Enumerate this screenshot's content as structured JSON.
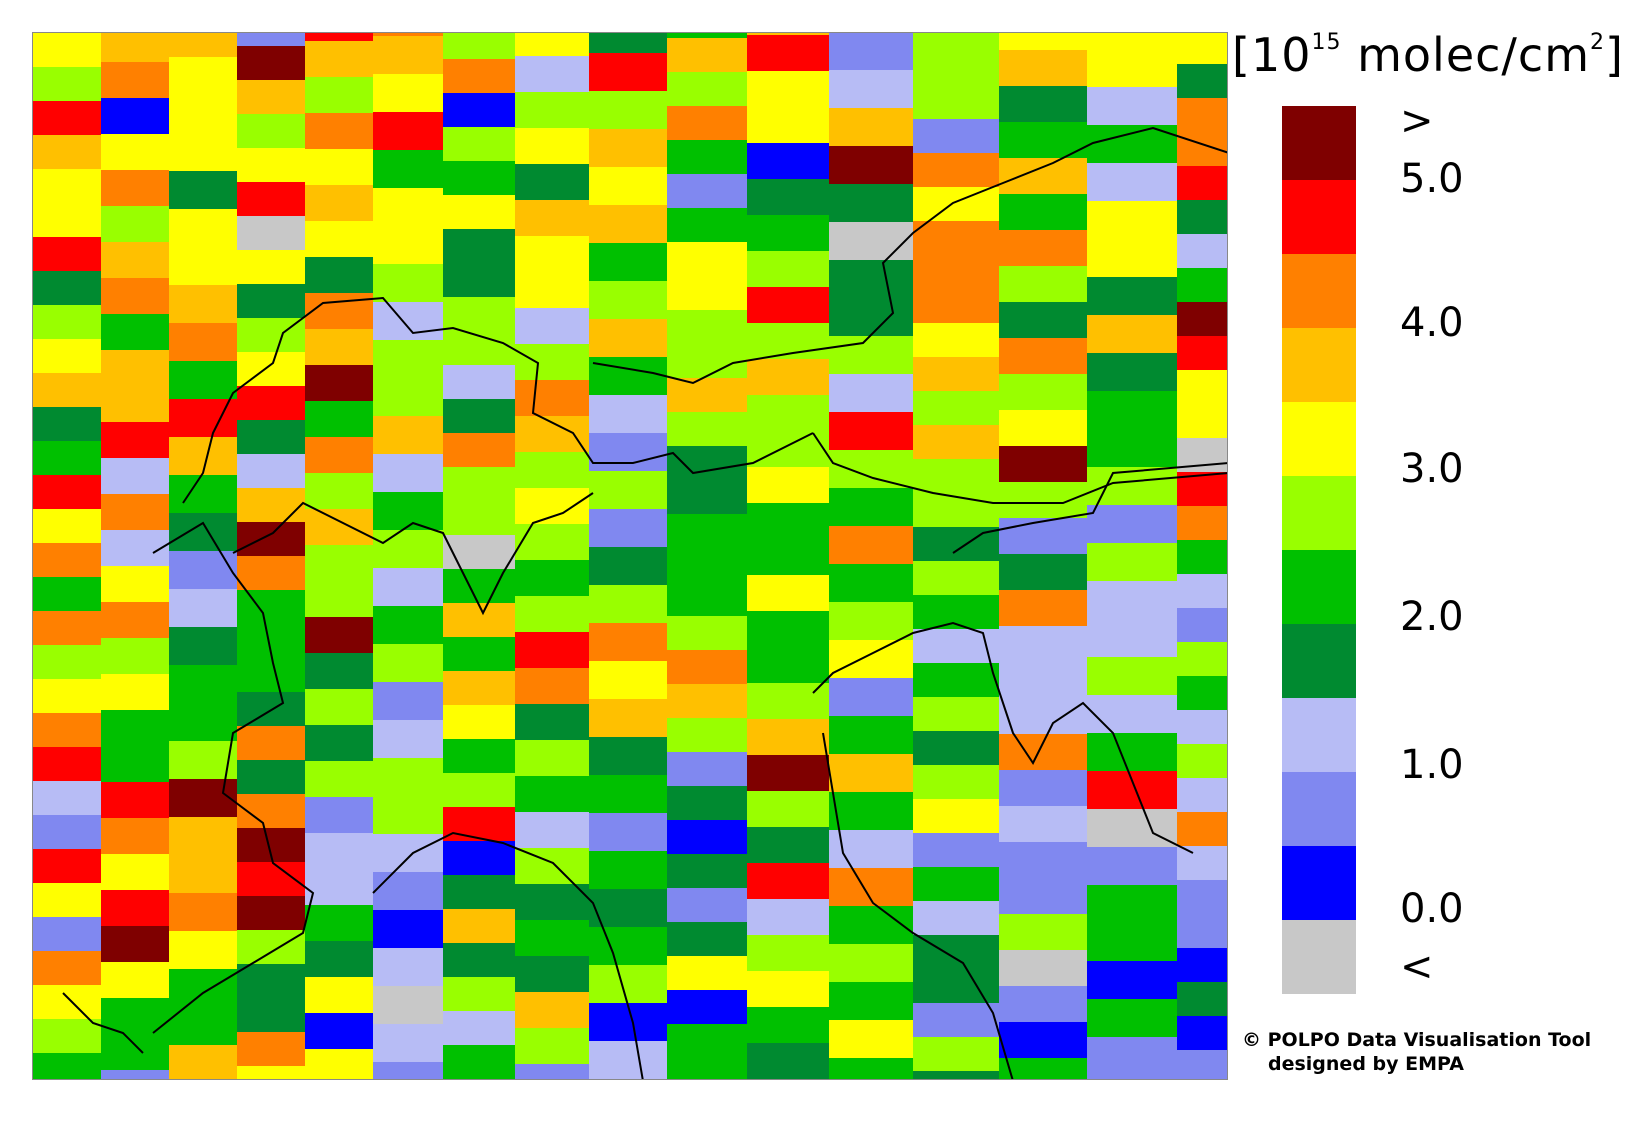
{
  "legend": {
    "unit_prefix": "[10",
    "unit_exp": "15",
    "unit_suffix": " molec/cm",
    "unit_sq": "2",
    "unit_close": "]",
    "classes": [
      {
        "color": "#7f0000"
      },
      {
        "color": "#ff0000"
      },
      {
        "color": "#ff8000"
      },
      {
        "color": "#ffc000"
      },
      {
        "color": "#ffff00"
      },
      {
        "color": "#99ff00"
      },
      {
        "color": "#00c000"
      },
      {
        "color": "#008a30"
      },
      {
        "color": "#b7bcf5"
      },
      {
        "color": "#8088f0"
      },
      {
        "color": "#0000ff"
      },
      {
        "color": "#c8c8c8"
      }
    ],
    "labels": [
      ">",
      "5.0",
      "4.0",
      "3.0",
      "2.0",
      "1.0",
      "0.0",
      "<"
    ]
  },
  "credit": {
    "line1": "© POLPO Data Visualisation Tool",
    "line2": "designed by EMPA"
  }
}
